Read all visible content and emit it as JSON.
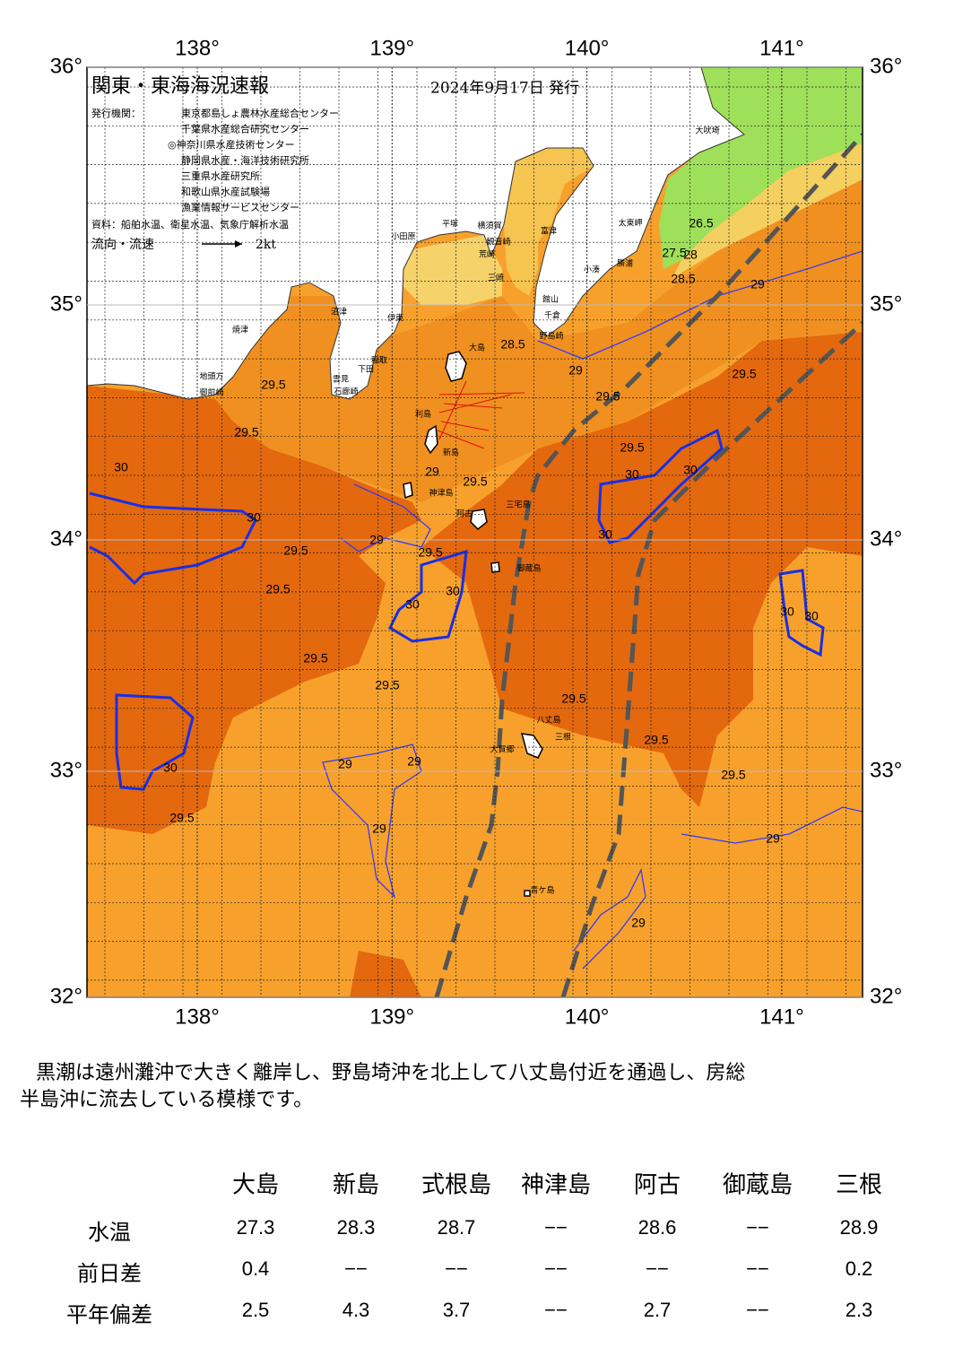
{
  "header": {
    "title": "関東・東海海況速報",
    "date": "2024年9月17日 発行",
    "publisher_label": "発行機関：",
    "publishers": [
      "東京都島しょ農林水産総合センター",
      "千葉県水産総合研究センター",
      "◎神奈川県水産技術センター",
      "静岡県水産・海洋技術研究所",
      "三重県水産研究所",
      "和歌山県水産試験場",
      "漁業情報サービスセンター"
    ],
    "sources": "資料：船舶水温、衛星水温、気象庁解析水温",
    "current_label": "流向・流速",
    "current_scale": "2kt"
  },
  "map": {
    "lon_ticks": [
      {
        "value": 138,
        "label": "138°"
      },
      {
        "value": 139,
        "label": "139°"
      },
      {
        "value": 140,
        "label": "140°"
      },
      {
        "value": 141,
        "label": "141°"
      }
    ],
    "lat_ticks": [
      {
        "value": 36,
        "label": "36°"
      },
      {
        "value": 35,
        "label": "35°"
      },
      {
        "value": 34,
        "label": "34°"
      },
      {
        "value": 33,
        "label": "33°"
      },
      {
        "value": 32,
        "label": "32°"
      }
    ],
    "places": [
      "大吠埼",
      "太東岬",
      "勝浦",
      "小湊",
      "富津",
      "横須賀",
      "平塚",
      "小田原",
      "観音崎",
      "荒崎",
      "三崎",
      "館山",
      "千倉",
      "野島崎",
      "大島",
      "伊東",
      "沼津",
      "稲取",
      "下田",
      "雲見",
      "石廊崎",
      "焼津",
      "地頭方",
      "御前崎",
      "利島",
      "新島",
      "神津島",
      "阿古",
      "三宅島",
      "御蔵島",
      "八丈島",
      "三根",
      "大賀郷",
      "青ケ島"
    ],
    "contour_labels": [
      "29.5",
      "29.5",
      "30",
      "30",
      "29.5",
      "29.5",
      "29",
      "29.5",
      "30",
      "30",
      "29.5",
      "29.5",
      "29",
      "29",
      "30",
      "29.5",
      "29",
      "28.5",
      "29",
      "29.5",
      "29.5",
      "29.5",
      "30",
      "30",
      "30",
      "29",
      "29.5",
      "29.5",
      "29.5",
      "29.5",
      "29",
      "29",
      "30",
      "30",
      "26.5",
      "27.5",
      "28",
      "28.5",
      "29"
    ]
  },
  "summary": [
    "黒潮は遠州灘沖で大きく離岸し、野島埼沖を北上して八丈島付近を通過し、房総",
    "半島沖に流去している模様です。"
  ],
  "table": {
    "columns": [
      "大島",
      "新島",
      "式根島",
      "神津島",
      "阿古",
      "御蔵島",
      "三根"
    ],
    "rows": [
      {
        "label": "水温",
        "values": [
          27.3,
          28.3,
          28.7,
          "−−",
          28.6,
          "−−",
          28.9
        ]
      },
      {
        "label": "前日差",
        "values": [
          0.4,
          "−−",
          "−−",
          "−−",
          "−−",
          "−−",
          0.2
        ]
      },
      {
        "label": "平年偏差",
        "values": [
          2.5,
          4.3,
          3.7,
          "−−",
          2.7,
          "−−",
          2.3
        ]
      }
    ]
  }
}
